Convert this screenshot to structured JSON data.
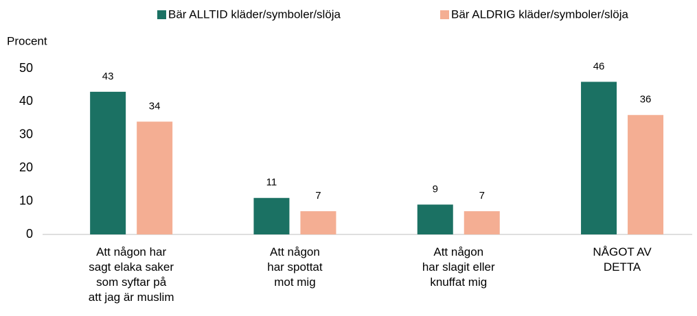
{
  "chart_data": {
    "type": "bar",
    "y_label": "Procent",
    "categories": [
      "Att någon har\nsagt elaka saker\nsom syftar på\natt jag är muslim",
      "Att någon\nhar spottat\nmot mig",
      "Att någon\nhar slagit eller\nknuffat mig",
      "NÅGOT AV\nDETTA"
    ],
    "series": [
      {
        "name": "Bär ALLTID kläder/symboler/slöja",
        "color": "#1b7163",
        "values": [
          43,
          11,
          9,
          46
        ]
      },
      {
        "name": "Bär ALDRIG kläder/symboler/slöja",
        "color": "#f4ae93",
        "values": [
          34,
          7,
          7,
          36
        ]
      }
    ],
    "ylim": [
      0,
      50
    ],
    "yticks": [
      0,
      10,
      20,
      30,
      40,
      50
    ],
    "legend": "top",
    "grid": false
  }
}
